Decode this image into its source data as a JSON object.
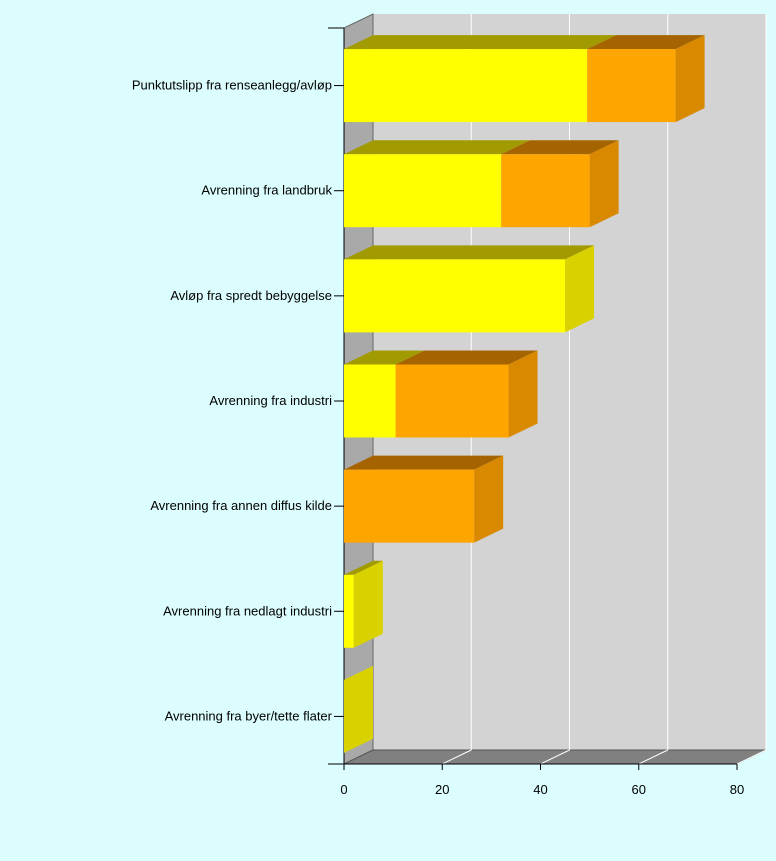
{
  "colors": {
    "page_bg": "#dcfdfe",
    "plot_bg": "#d3d3d3",
    "wall_side": "#a9a9a9",
    "floor": "#808080",
    "grid": "#ffffff",
    "series_1_front": "#ffff00",
    "series_1_top": "#a19a00",
    "series_1_side": "#d9d200",
    "series_2_front": "#ffa500",
    "series_2_top": "#a66400",
    "series_2_side": "#d98900"
  },
  "chart_data": {
    "type": "bar",
    "orientation": "horizontal",
    "stacked": true,
    "three_d": true,
    "title": "",
    "xlabel": "",
    "ylabel": "",
    "categories": [
      "Punktutslipp fra renseanlegg/avløp",
      "Avrenning fra landbruk",
      "Avløp fra spredt bebyggelse",
      "Avrenning fra industri",
      "Avrenning fra annen diffus kilde",
      "Avrenning fra nedlagt industri",
      "Avrenning fra byer/tette flater"
    ],
    "series": [
      {
        "values": [
          49.5,
          32,
          45,
          10.5,
          0,
          2,
          0
        ]
      },
      {
        "values": [
          18,
          18,
          0,
          23,
          26.5,
          0,
          0
        ]
      }
    ],
    "xlim": [
      0,
      80
    ],
    "x_ticks": [
      "0",
      "20",
      "40",
      "60",
      "80"
    ],
    "grid": true,
    "legend": "none"
  }
}
